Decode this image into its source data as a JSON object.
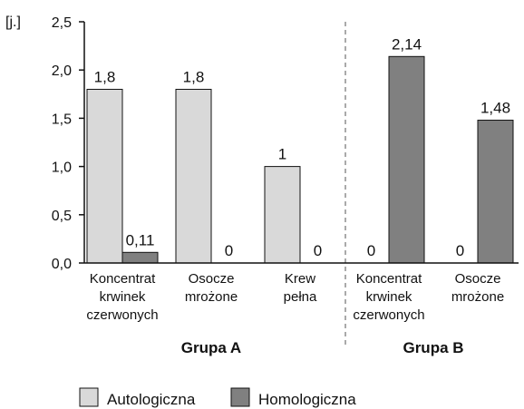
{
  "chart_data": {
    "type": "bar",
    "y_unit": "[j.]",
    "categories": [
      [
        "Koncentrat",
        "krwinek",
        "czerwonych"
      ],
      [
        "Osocze",
        "mrożone"
      ],
      [
        "Krew",
        "pełna"
      ],
      [
        "Koncentrat",
        "krwinek",
        "czerwonych"
      ],
      [
        "Osocze",
        "mrożone"
      ]
    ],
    "groups": [
      "Grupa A",
      "Grupa B"
    ],
    "series": [
      {
        "name": "Autologiczna",
        "color": "#d9d9d9",
        "values": [
          1.8,
          1.8,
          1,
          0,
          0
        ],
        "value_labels": [
          "1,8",
          "1,8",
          "1",
          "0",
          "0"
        ]
      },
      {
        "name": "Homologiczna",
        "color": "#808080",
        "values": [
          0.11,
          0,
          0,
          2.14,
          1.48
        ],
        "value_labels": [
          "0,11",
          "0",
          "0",
          "2,14",
          "1,48"
        ]
      }
    ],
    "ylim": [
      0,
      2.5
    ],
    "yticks": [
      {
        "value": 0,
        "label": "0,0"
      },
      {
        "value": 0.5,
        "label": "0,5"
      },
      {
        "value": 1,
        "label": "1,0"
      },
      {
        "value": 1.5,
        "label": "1,5"
      },
      {
        "value": 2,
        "label": "2,0"
      },
      {
        "value": 2.5,
        "label": "2,5"
      }
    ],
    "grid": false
  }
}
